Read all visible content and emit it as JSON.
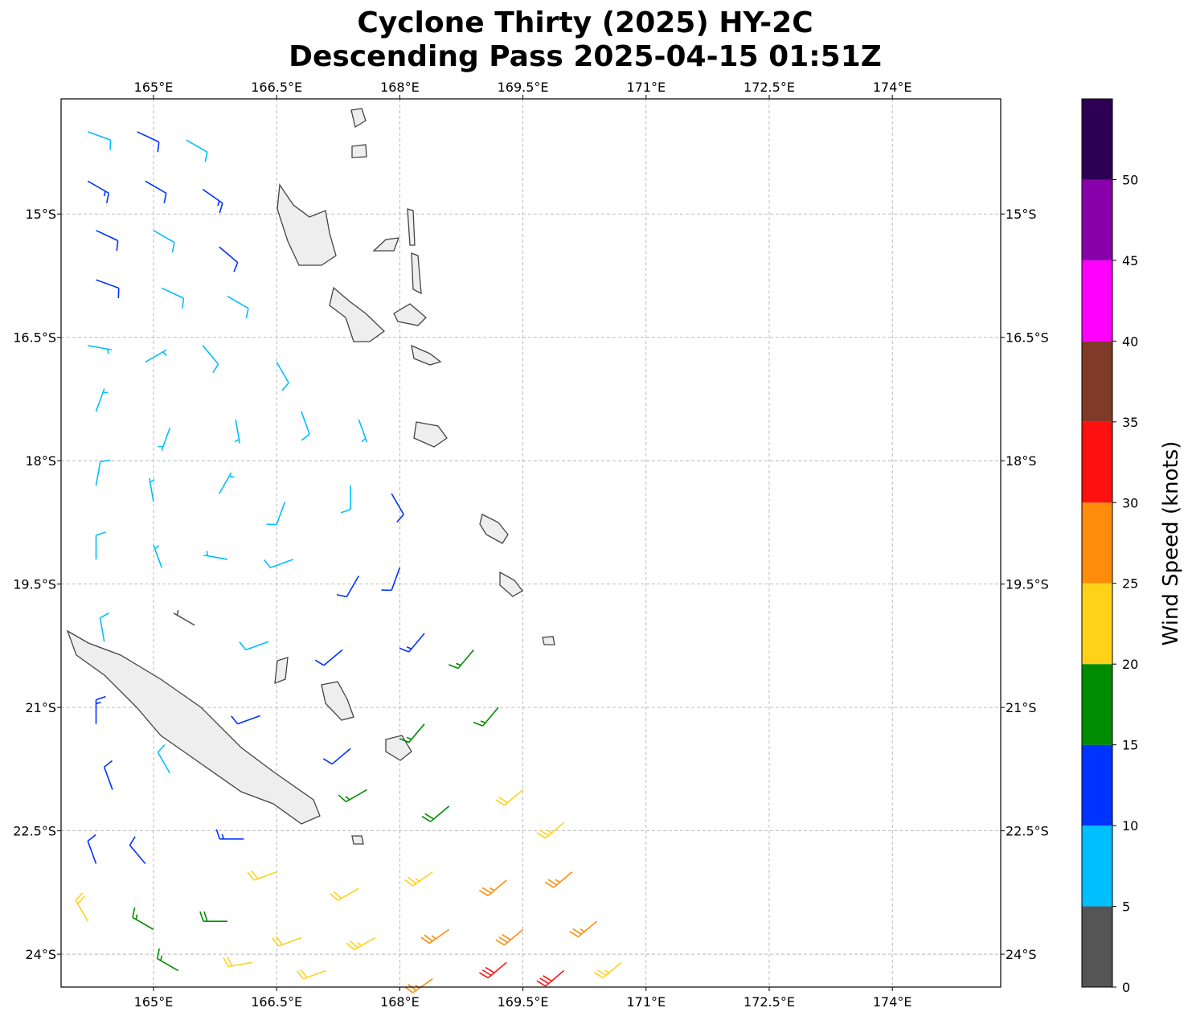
{
  "chart_data": {
    "type": "wind_barbs",
    "title": "Cyclone Thirty (2025) HY-2C",
    "subtitle": "Descending Pass 2025-04-15 01:51Z",
    "xlim": [
      163.874,
      175.32
    ],
    "ylim": [
      -24.4,
      -13.6
    ],
    "xticks": [
      {
        "value": 165,
        "label": "165°E"
      },
      {
        "value": 166.5,
        "label": "166.5°E"
      },
      {
        "value": 168,
        "label": "168°E"
      },
      {
        "value": 169.5,
        "label": "169.5°E"
      },
      {
        "value": 171,
        "label": "171°E"
      },
      {
        "value": 172.5,
        "label": "172.5°E"
      },
      {
        "value": 174,
        "label": "174°E"
      }
    ],
    "yticks": [
      {
        "value": -15,
        "label": "15°S"
      },
      {
        "value": -16.5,
        "label": "16.5°S"
      },
      {
        "value": -18,
        "label": "18°S"
      },
      {
        "value": -19.5,
        "label": "19.5°S"
      },
      {
        "value": -21,
        "label": "21°S"
      },
      {
        "value": -22.5,
        "label": "22.5°S"
      },
      {
        "value": -24,
        "label": "24°S"
      }
    ],
    "grid": true,
    "barbs": {
      "lon": [
        164.2,
        164.8,
        165.4,
        164.2,
        164.9,
        165.6,
        164.3,
        165.0,
        165.8,
        164.3,
        165.1,
        165.9,
        164.2,
        164.9,
        165.6,
        166.5,
        164.3,
        165.2,
        166.0,
        166.8,
        167.5,
        164.3,
        165.0,
        165.8,
        166.6,
        167.4,
        167.9,
        164.3,
        165.1,
        165.9,
        166.7,
        167.5,
        168.0,
        164.4,
        165.5,
        166.4,
        167.3,
        168.3,
        168.9,
        164.3,
        166.3,
        167.4,
        168.3,
        169.2,
        164.5,
        165.2,
        166.1,
        167.6,
        168.6,
        169.5,
        170.0,
        164.3,
        164.9,
        166.5,
        167.5,
        168.4,
        169.3,
        170.1,
        164.2,
        165.0,
        165.9,
        166.8,
        167.7,
        168.6,
        169.5,
        170.4,
        165.3,
        166.2,
        167.1,
        168.4,
        169.3,
        170.0,
        170.7
      ],
      "lat": [
        -14.0,
        -14.0,
        -14.1,
        -14.6,
        -14.6,
        -14.7,
        -15.2,
        -15.2,
        -15.4,
        -15.8,
        -15.9,
        -16.0,
        -16.6,
        -16.8,
        -16.6,
        -16.8,
        -17.4,
        -17.6,
        -17.5,
        -17.4,
        -17.5,
        -18.3,
        -18.5,
        -18.4,
        -18.5,
        -18.3,
        -18.4,
        -19.2,
        -19.3,
        -19.2,
        -19.2,
        -19.4,
        -19.3,
        -20.2,
        -20.0,
        -20.2,
        -20.3,
        -20.1,
        -20.3,
        -21.2,
        -21.1,
        -21.5,
        -21.2,
        -21.0,
        -22.0,
        -21.8,
        -22.6,
        -22.0,
        -22.2,
        -22.0,
        -22.4,
        -22.9,
        -22.9,
        -23.0,
        -23.2,
        -23.0,
        -23.1,
        -23.0,
        -23.6,
        -23.7,
        -23.6,
        -23.8,
        -23.8,
        -23.7,
        -23.7,
        -23.6,
        -24.2,
        -24.1,
        -24.2,
        -24.3,
        -24.1,
        -24.2,
        -24.1
      ],
      "speed": [
        8,
        12,
        9,
        13,
        11,
        13,
        12,
        9,
        12,
        10,
        8,
        8,
        7,
        6,
        8,
        8,
        7,
        7,
        7,
        8,
        7,
        8,
        7,
        7,
        8,
        8,
        11,
        8,
        7,
        7,
        9,
        11,
        12,
        8,
        4,
        9,
        12,
        13,
        16,
        13,
        11,
        12,
        16,
        17,
        12,
        8,
        13,
        17,
        19,
        22,
        23,
        12,
        12,
        22,
        22,
        24,
        26,
        27,
        22,
        17,
        18,
        22,
        23,
        27,
        28,
        27,
        16,
        20,
        22,
        27,
        31,
        32,
        24
      ],
      "dir": [
        110,
        115,
        120,
        120,
        120,
        125,
        115,
        120,
        130,
        110,
        115,
        120,
        100,
        60,
        140,
        150,
        20,
        200,
        170,
        160,
        160,
        10,
        350,
        30,
        200,
        180,
        150,
        0,
        340,
        280,
        250,
        210,
        200,
        350,
        300,
        250,
        230,
        220,
        220,
        0,
        250,
        230,
        220,
        220,
        340,
        330,
        270,
        240,
        230,
        230,
        230,
        340,
        320,
        250,
        240,
        235,
        230,
        230,
        330,
        300,
        270,
        250,
        240,
        235,
        230,
        230,
        300,
        260,
        250,
        235,
        230,
        230,
        230
      ]
    },
    "colorbar": {
      "label": "Wind Speed (knots)",
      "bounds": [
        0,
        5,
        10,
        15,
        20,
        25,
        30,
        35,
        40,
        45,
        50,
        55
      ],
      "colors": [
        "#555555",
        "#00bfff",
        "#0033ff",
        "#008c00",
        "#ffd21a",
        "#ff8c0a",
        "#ff1010",
        "#7f3a28",
        "#ff00ff",
        "#8800aa",
        "#2e0055"
      ],
      "ticks": [
        0,
        5,
        10,
        15,
        20,
        25,
        30,
        35,
        40,
        45,
        50
      ]
    }
  }
}
